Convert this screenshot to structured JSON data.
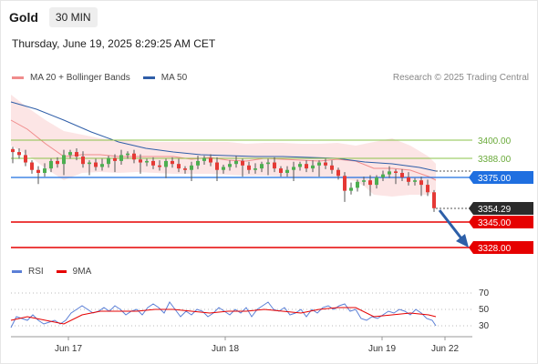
{
  "header": {
    "title": "Gold",
    "timeframe": "30 MIN"
  },
  "datetime": "Thursday, June 19, 2025 8:29:25 AM CET",
  "legend": [
    {
      "label": "MA 20 + Bollinger Bands",
      "color": "#f08c8c"
    },
    {
      "label": "MA 50",
      "color": "#2f5ea8"
    }
  ],
  "credit": "Research © 2025 Trading Central",
  "levels": [
    {
      "value": "3400.00",
      "kind": "resistance",
      "color": "#6aaa3a"
    },
    {
      "value": "3388.00",
      "kind": "resistance",
      "color": "#6aaa3a"
    },
    {
      "value": "3375.00",
      "kind": "pivot",
      "color": "#1f6fe0"
    },
    {
      "value": "3354.29",
      "kind": "last",
      "color": "#2b2b2b"
    },
    {
      "value": "3345.00",
      "kind": "support",
      "color": "#e60000"
    },
    {
      "value": "3328.00",
      "kind": "support",
      "color": "#e60000"
    }
  ],
  "rsi": {
    "legend": [
      {
        "label": "RSI",
        "color": "#5b7fd6"
      },
      {
        "label": "9MA",
        "color": "#e60000"
      }
    ],
    "levels": [
      "70",
      "50",
      "30"
    ]
  },
  "xaxis": [
    "Jun 17",
    "Jun 18",
    "Jun 19",
    "Jun 22"
  ],
  "chart_data": {
    "type": "candlestick",
    "instrument": "Gold",
    "interval": "30 MIN",
    "price_levels": [
      3400.0,
      3388.0,
      3375.0,
      3354.29,
      3345.0,
      3328.0
    ],
    "close_path": [
      3392,
      3390,
      3385,
      3380,
      3378,
      3381,
      3386,
      3384,
      3390,
      3392,
      3389,
      3384,
      3385,
      3382,
      3384,
      3388,
      3386,
      3390,
      3391,
      3387,
      3385,
      3386,
      3383,
      3382,
      3386,
      3384,
      3381,
      3380,
      3383,
      3386,
      3388,
      3385,
      3380,
      3382,
      3384,
      3386,
      3383,
      3380,
      3381,
      3384,
      3385,
      3381,
      3378,
      3380,
      3382,
      3384,
      3381,
      3383,
      3385,
      3383,
      3380,
      3376,
      3366,
      3368,
      3372,
      3373,
      3370,
      3375,
      3377,
      3379,
      3378,
      3375,
      3372,
      3373,
      3370,
      3365,
      3354.29
    ],
    "rsi_levels": [
      70,
      50,
      30
    ]
  }
}
